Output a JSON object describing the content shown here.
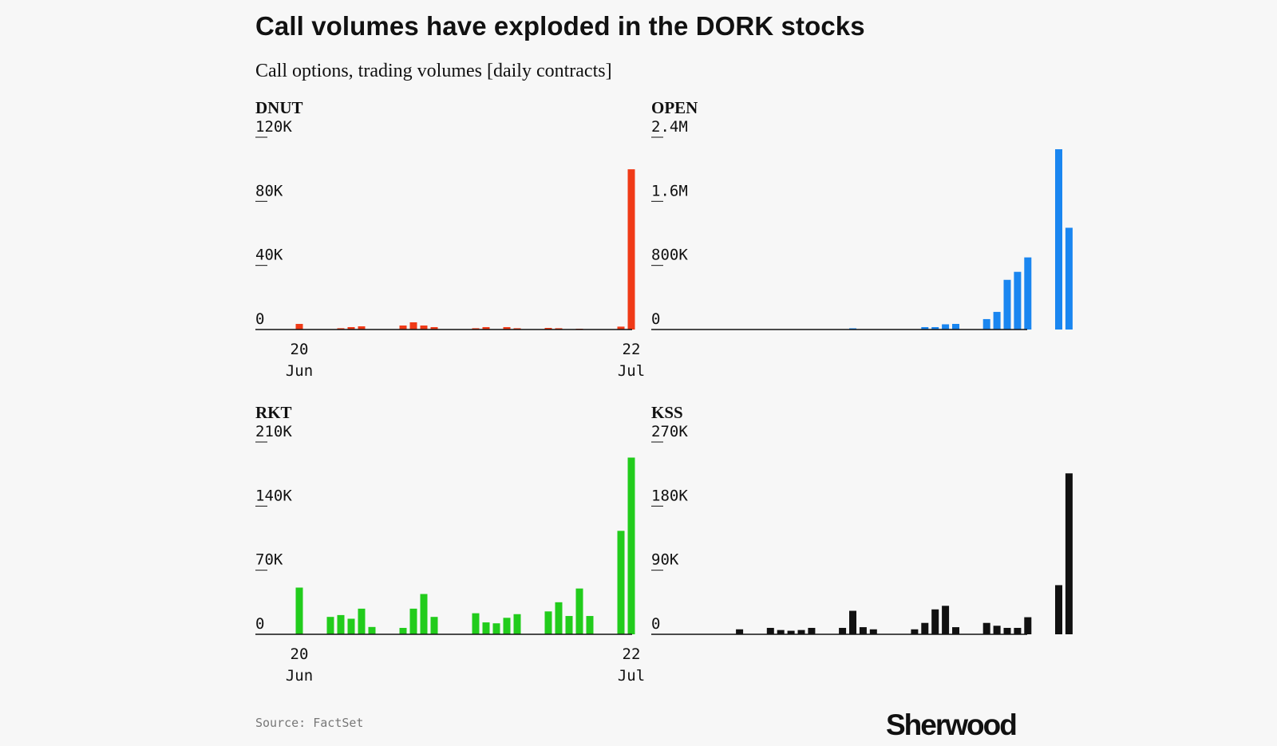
{
  "title": "Call volumes have exploded in the DORK stocks",
  "subtitle": "Call options, trading volumes [daily contracts]",
  "source": "Source: FactSet",
  "logo": "Sherwood",
  "chart_data": [
    {
      "type": "bar",
      "name": "DNUT",
      "color": "#f03a17",
      "yticks": [
        "0",
        "40K",
        "80K",
        "120K"
      ],
      "ylim": [
        0,
        120000
      ],
      "xticks": [
        {
          "day": 0,
          "day_label": "20",
          "month_label": "Jun"
        },
        {
          "day": 32,
          "day_label": "22",
          "month_label": "Jul"
        }
      ],
      "values": [
        {
          "day": 0,
          "value": 3500
        },
        {
          "day": 4,
          "value": 800
        },
        {
          "day": 5,
          "value": 1500
        },
        {
          "day": 6,
          "value": 2000
        },
        {
          "day": 10,
          "value": 2500
        },
        {
          "day": 11,
          "value": 4500
        },
        {
          "day": 12,
          "value": 2500
        },
        {
          "day": 13,
          "value": 1500
        },
        {
          "day": 17,
          "value": 800
        },
        {
          "day": 18,
          "value": 1500
        },
        {
          "day": 20,
          "value": 1500
        },
        {
          "day": 21,
          "value": 800
        },
        {
          "day": 24,
          "value": 1000
        },
        {
          "day": 25,
          "value": 800
        },
        {
          "day": 27,
          "value": 500
        },
        {
          "day": 31,
          "value": 1800
        },
        {
          "day": 32,
          "value": 100000
        }
      ]
    },
    {
      "type": "bar",
      "name": "OPEN",
      "color": "#1a86f0",
      "yticks": [
        "0",
        "800K",
        "1.6M",
        "2.4M"
      ],
      "ylim": [
        0,
        2400000
      ],
      "xticks": [],
      "values": [
        {
          "day": 15,
          "value": 15000
        },
        {
          "day": 22,
          "value": 30000
        },
        {
          "day": 23,
          "value": 30000
        },
        {
          "day": 24,
          "value": 65000
        },
        {
          "day": 25,
          "value": 70000
        },
        {
          "day": 28,
          "value": 130000
        },
        {
          "day": 29,
          "value": 220000
        },
        {
          "day": 30,
          "value": 620000
        },
        {
          "day": 31,
          "value": 720000
        },
        {
          "day": 32,
          "value": 900000
        },
        {
          "day": 35,
          "value": 2250000
        },
        {
          "day": 36,
          "value": 1270000
        }
      ]
    },
    {
      "type": "bar",
      "name": "RKT",
      "color": "#22cc1c",
      "yticks": [
        "0",
        "70K",
        "140K",
        "210K"
      ],
      "ylim": [
        0,
        210000
      ],
      "xticks": [
        {
          "day": 0,
          "day_label": "20",
          "month_label": "Jun"
        },
        {
          "day": 32,
          "day_label": "22",
          "month_label": "Jul"
        }
      ],
      "values": [
        {
          "day": 0,
          "value": 51000
        },
        {
          "day": 3,
          "value": 19000
        },
        {
          "day": 4,
          "value": 21000
        },
        {
          "day": 5,
          "value": 17000
        },
        {
          "day": 6,
          "value": 28000
        },
        {
          "day": 7,
          "value": 8000
        },
        {
          "day": 10,
          "value": 7000
        },
        {
          "day": 11,
          "value": 28000
        },
        {
          "day": 12,
          "value": 44000
        },
        {
          "day": 13,
          "value": 19000
        },
        {
          "day": 17,
          "value": 23000
        },
        {
          "day": 18,
          "value": 13000
        },
        {
          "day": 19,
          "value": 12000
        },
        {
          "day": 20,
          "value": 18000
        },
        {
          "day": 21,
          "value": 22000
        },
        {
          "day": 24,
          "value": 25000
        },
        {
          "day": 25,
          "value": 35000
        },
        {
          "day": 26,
          "value": 20000
        },
        {
          "day": 27,
          "value": 50000
        },
        {
          "day": 28,
          "value": 20000
        },
        {
          "day": 31,
          "value": 113000
        },
        {
          "day": 32,
          "value": 193000
        }
      ]
    },
    {
      "type": "bar",
      "name": "KSS",
      "color": "#111111",
      "yticks": [
        "0",
        "90K",
        "180K",
        "270K"
      ],
      "ylim": [
        0,
        270000
      ],
      "xticks": [],
      "values": [
        {
          "day": 4,
          "value": 7000
        },
        {
          "day": 7,
          "value": 9000
        },
        {
          "day": 8,
          "value": 6000
        },
        {
          "day": 9,
          "value": 5000
        },
        {
          "day": 10,
          "value": 6000
        },
        {
          "day": 11,
          "value": 9000
        },
        {
          "day": 14,
          "value": 9000
        },
        {
          "day": 15,
          "value": 33000
        },
        {
          "day": 16,
          "value": 10000
        },
        {
          "day": 17,
          "value": 7000
        },
        {
          "day": 21,
          "value": 7000
        },
        {
          "day": 22,
          "value": 16000
        },
        {
          "day": 23,
          "value": 35000
        },
        {
          "day": 24,
          "value": 40000
        },
        {
          "day": 25,
          "value": 10000
        },
        {
          "day": 28,
          "value": 16000
        },
        {
          "day": 29,
          "value": 12000
        },
        {
          "day": 30,
          "value": 9000
        },
        {
          "day": 31,
          "value": 9000
        },
        {
          "day": 32,
          "value": 24000
        },
        {
          "day": 35,
          "value": 69000
        },
        {
          "day": 36,
          "value": 226000
        }
      ]
    }
  ]
}
